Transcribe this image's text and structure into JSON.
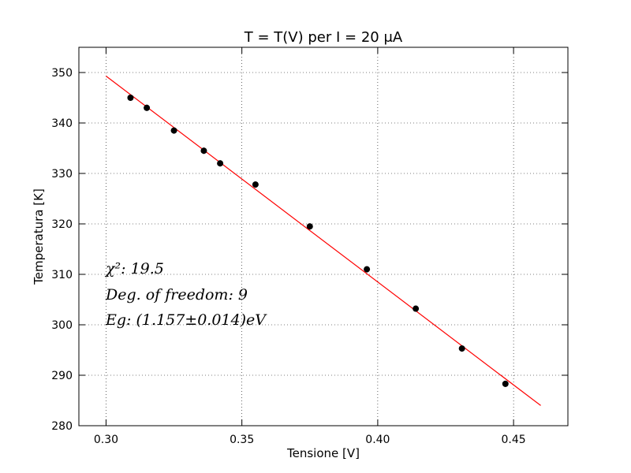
{
  "chart_data": {
    "type": "scatter",
    "title": "T = T(V) per I = 20 μA",
    "xlabel": "Tensione [V]",
    "ylabel": "Temperatura [K]",
    "xlim": [
      0.29,
      0.47
    ],
    "ylim": [
      280,
      355
    ],
    "x_ticks": [
      0.3,
      0.35,
      0.4,
      0.45
    ],
    "x_tick_labels": [
      "0.30",
      "0.35",
      "0.40",
      "0.45"
    ],
    "y_ticks": [
      280,
      290,
      300,
      310,
      320,
      330,
      340,
      350
    ],
    "y_tick_labels": [
      "280",
      "290",
      "300",
      "310",
      "320",
      "330",
      "340",
      "350"
    ],
    "grid": true,
    "series": [
      {
        "kind": "points",
        "color": "#000000",
        "x": [
          0.309,
          0.315,
          0.325,
          0.336,
          0.342,
          0.355,
          0.375,
          0.396,
          0.414,
          0.431,
          0.447
        ],
        "y": [
          345.0,
          343.0,
          338.5,
          334.5,
          332.0,
          327.8,
          319.5,
          311.0,
          303.2,
          295.3,
          288.3
        ]
      },
      {
        "kind": "fit-line",
        "color": "#ff0000",
        "x": [
          0.3,
          0.46
        ],
        "y": [
          349.3,
          284.0
        ]
      }
    ],
    "annotations": [
      "χ²: 19.5",
      "Deg. of freedom: 9",
      "Eg: (1.157±0.014)eV"
    ]
  }
}
